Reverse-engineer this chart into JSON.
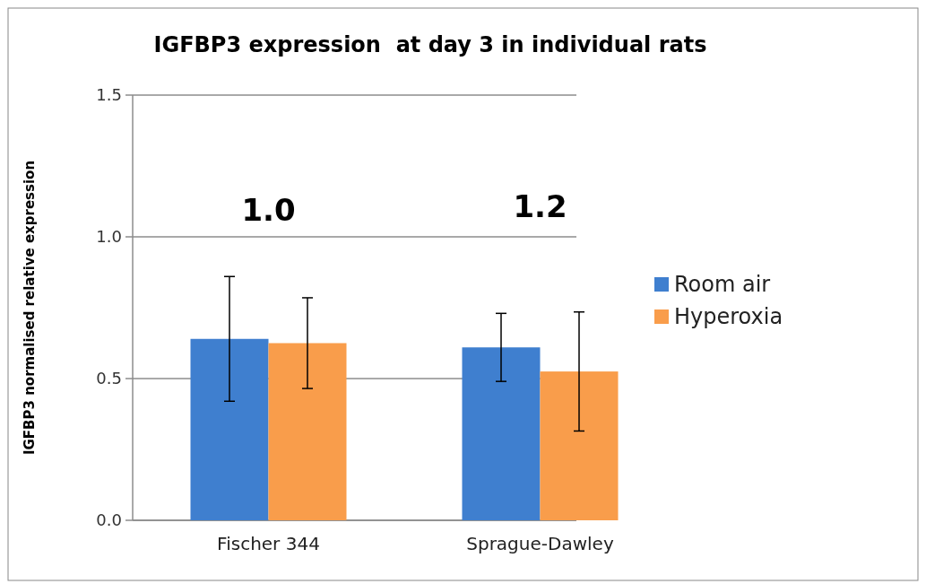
{
  "chart_data": {
    "type": "bar",
    "title": "IGFBP3 expression  at day 3 in individual rats",
    "ylabel": "IGFBP3 normalised relative expression",
    "categories": [
      "Fischer 344",
      "Sprague-Dawley"
    ],
    "series": [
      {
        "name": "Room air",
        "color": "#3f7fcf",
        "values": [
          0.64,
          0.61
        ],
        "errors": [
          0.22,
          0.12
        ]
      },
      {
        "name": "Hyperoxia",
        "color": "#f99d4b",
        "values": [
          0.625,
          0.525
        ],
        "errors": [
          0.16,
          0.21
        ]
      }
    ],
    "ylim": [
      0,
      1.5
    ],
    "yticks": [
      {
        "value": 0,
        "label": "0.0"
      },
      {
        "value": 0.5,
        "label": "0.5"
      },
      {
        "value": 1,
        "label": "1.0"
      },
      {
        "value": 1.5,
        "label": "1.5"
      }
    ],
    "grid": "y",
    "legend": "right",
    "annotations": [
      "1.0",
      "1.2"
    ]
  }
}
